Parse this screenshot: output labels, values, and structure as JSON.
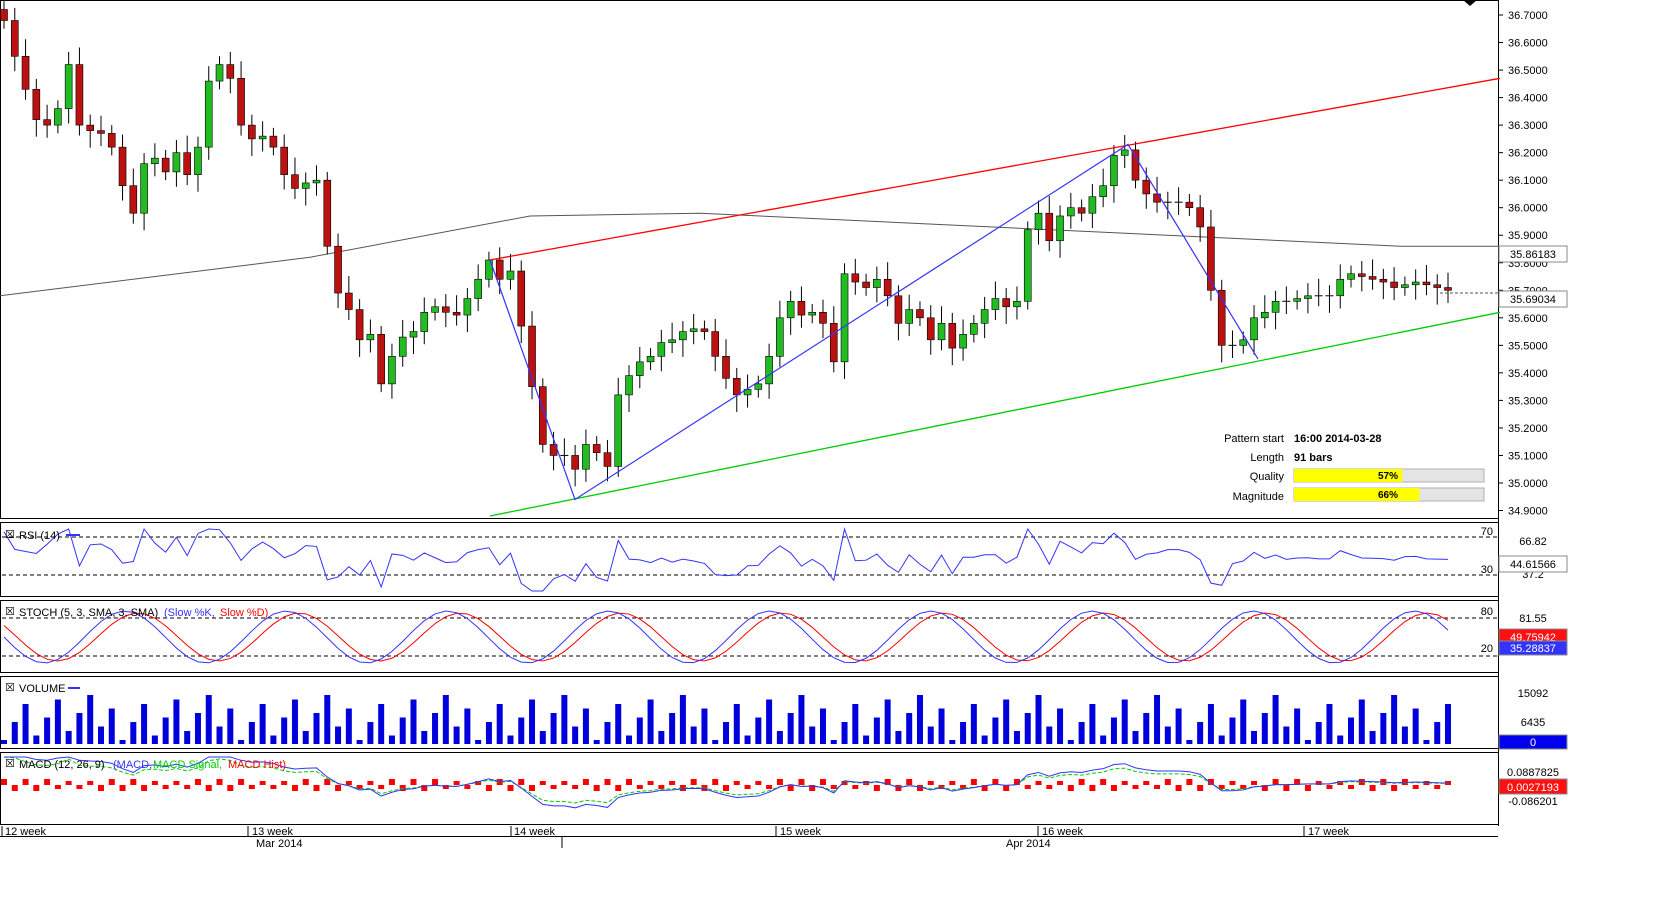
{
  "chart_data": [
    {
      "type": "candlestick",
      "panel": "price",
      "ylim": [
        34.88,
        36.74
      ],
      "y_ticks": [
        "36.7000",
        "36.6000",
        "36.5000",
        "36.4000",
        "36.3000",
        "36.2000",
        "36.1000",
        "36.0000",
        "35.9000",
        "35.8000",
        "35.7000",
        "35.6000",
        "35.5000",
        "35.4000",
        "35.3000",
        "35.2000",
        "35.1000",
        "35.0000",
        "34.9000"
      ],
      "current_price_label": "35.69034",
      "sma_label": "35.86183",
      "current_price": 35.69034,
      "sma_value": 35.86183,
      "closes": [
        36.68,
        36.55,
        36.43,
        36.32,
        36.3,
        36.36,
        36.52,
        36.3,
        36.28,
        36.27,
        36.22,
        36.08,
        35.98,
        36.16,
        36.18,
        36.13,
        36.2,
        36.12,
        36.22,
        36.46,
        36.52,
        36.47,
        36.3,
        36.25,
        36.26,
        36.22,
        36.12,
        36.07,
        36.09,
        36.1,
        35.86,
        35.69,
        35.63,
        35.52,
        35.54,
        35.36,
        35.46,
        35.53,
        35.55,
        35.62,
        35.64,
        35.62,
        35.61,
        35.67,
        35.74,
        35.81,
        35.74,
        35.77,
        35.57,
        35.35,
        35.14,
        35.1,
        35.1,
        35.05,
        35.14,
        35.11,
        35.06,
        35.32,
        35.39,
        35.44,
        35.46,
        35.51,
        35.52,
        35.55,
        35.56,
        35.55,
        35.46,
        35.38,
        35.32,
        35.34,
        35.36,
        35.46,
        35.6,
        35.66,
        35.61,
        35.62,
        35.58,
        35.44,
        35.76,
        35.73,
        35.71,
        35.74,
        35.68,
        35.58,
        35.63,
        35.6,
        35.52,
        35.58,
        35.49,
        35.54,
        35.58,
        35.63,
        35.67,
        35.64,
        35.66,
        35.92,
        35.98,
        35.88,
        35.97,
        36.0,
        35.98,
        36.04,
        36.08,
        36.19,
        36.21,
        36.1,
        36.05,
        36.02,
        36.02,
        36.02,
        36.0,
        35.93,
        35.7,
        35.5,
        35.5,
        35.52,
        35.6,
        35.62,
        35.66,
        35.66,
        35.67,
        35.68,
        35.68,
        35.68,
        35.74,
        35.76,
        35.75,
        35.74,
        35.73,
        35.71,
        35.72,
        35.73,
        35.72,
        35.71,
        35.7
      ],
      "sma_y": [
        35.68,
        35.82,
        35.97,
        35.98,
        35.86,
        35.86
      ],
      "sma_x": [
        0,
        310,
        530,
        700,
        1400,
        1500
      ],
      "pattern_lines": {
        "resistance": {
          "color": "#ff0000",
          "from_x": 490,
          "from_y": 35.81,
          "to_x": 1500,
          "to_y": 36.47
        },
        "support": {
          "color": "#00cc00",
          "from_x": 490,
          "from_y": 34.88,
          "to_x": 1500,
          "to_y": 35.62
        },
        "zigzag": {
          "color": "#3333ff",
          "x": [
            490,
            575,
            1128,
            1258
          ],
          "y": [
            35.81,
            34.94,
            36.23,
            35.45
          ]
        }
      },
      "pattern_info": {
        "rows": [
          {
            "label": "Pattern start",
            "value": "16:00 2014-03-28"
          },
          {
            "label": "Length",
            "value": "91 bars"
          },
          {
            "label": "Quality",
            "value": "57%",
            "fill": 0.57
          },
          {
            "label": "Magnitude",
            "value": "66%",
            "fill": 0.66
          }
        ]
      }
    },
    {
      "type": "line",
      "panel": "rsi",
      "title": "RSI (14)",
      "levels": [
        "70",
        "30"
      ],
      "extra_tick": "66.82",
      "current_value_label": "44.61566",
      "partially_hidden_tick": "37.2"
    },
    {
      "type": "line",
      "panel": "stoch",
      "title": "STOCH (5, 3, SMA, 3, SMA)",
      "series_names": [
        "Slow %K",
        "Slow %D"
      ],
      "series_colors": [
        "#3333ff",
        "#ff0000"
      ],
      "levels": [
        "80",
        "20"
      ],
      "extra_tick": "81.55",
      "value_labels": [
        "49.75942",
        "35.28837"
      ]
    },
    {
      "type": "bar",
      "panel": "volume",
      "title": "VOLUME",
      "ticks": [
        "15092",
        "6435"
      ],
      "current_value_label": "0"
    },
    {
      "type": "line",
      "panel": "macd",
      "title": "MACD (12, 26, 9)",
      "series_names": [
        "MACD",
        "MACD Signal",
        "MACD Hist"
      ],
      "series_colors": [
        "#3333ff",
        "#00cc00",
        "#ff0000"
      ],
      "ticks": [
        "0.0887825",
        "-0.086201"
      ],
      "current_value_label": "0.0027193"
    }
  ],
  "x_axis": {
    "week_labels": [
      "12 week",
      "13 week",
      "14 week",
      "15 week",
      "16 week",
      "17 week"
    ],
    "month_labels": [
      "Mar 2014",
      "Apr 2014"
    ]
  },
  "colors": {
    "bull": "#22bb22",
    "bear": "#bb1111",
    "volume": "#0000dd",
    "grid_dash": "#000000",
    "quality_bar": "#ffff00"
  }
}
